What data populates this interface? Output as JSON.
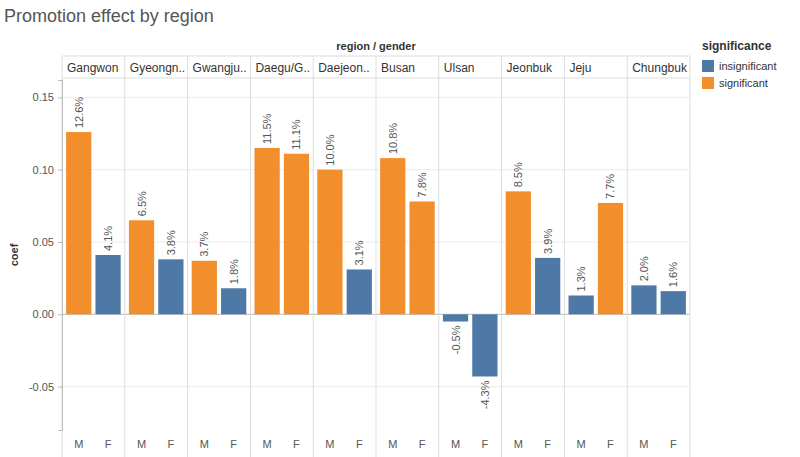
{
  "chart_data": {
    "type": "bar",
    "title": "Promotion effect by region",
    "facet_label": "region / gender",
    "y_label": "coef",
    "categories": [
      "Gangwon",
      "Gyeongn..",
      "Gwangju..",
      "Daegu/G..",
      "Daejeon..",
      "Busan",
      "Ulsan",
      "Jeonbuk",
      "Jeju",
      "Chungbuk"
    ],
    "series": [
      {
        "name": "M",
        "values": [
          0.126,
          0.065,
          0.037,
          0.115,
          0.1,
          0.108,
          -0.005,
          0.085,
          0.013,
          0.02
        ],
        "value_labels": [
          "12.6%",
          "6.5%",
          "3.7%",
          "11.5%",
          "10.0%",
          "10.8%",
          "-0.5%",
          "8.5%",
          "1.3%",
          "2.0%"
        ],
        "significance": [
          "significant",
          "significant",
          "significant",
          "significant",
          "significant",
          "significant",
          "insignificant",
          "significant",
          "insignificant",
          "insignificant"
        ]
      },
      {
        "name": "F",
        "values": [
          0.041,
          0.038,
          0.018,
          0.111,
          0.031,
          0.078,
          -0.043,
          0.039,
          0.077,
          0.016
        ],
        "value_labels": [
          "4.1%",
          "3.8%",
          "1.8%",
          "11.1%",
          "3.1%",
          "7.8%",
          "-4.3%",
          "3.9%",
          "7.7%",
          "1.6%"
        ],
        "significance": [
          "insignificant",
          "insignificant",
          "insignificant",
          "significant",
          "insignificant",
          "significant",
          "insignificant",
          "insignificant",
          "significant",
          "insignificant"
        ]
      }
    ],
    "legend_title": "significance",
    "legend_entries": [
      {
        "name": "insignificant",
        "color": "#4e79a7"
      },
      {
        "name": "significant",
        "color": "#f28e2b"
      }
    ],
    "legend": "right",
    "ylim": [
      -0.08,
      0.162
    ],
    "yticks": [
      {
        "value": -0.05,
        "label": "-0.05"
      },
      {
        "value": 0,
        "label": "0.00"
      },
      {
        "value": 0.05,
        "label": "0.05"
      },
      {
        "value": 0.1,
        "label": "0.10"
      },
      {
        "value": 0.15,
        "label": "0.15"
      }
    ],
    "grid": true,
    "data_labels": true
  }
}
